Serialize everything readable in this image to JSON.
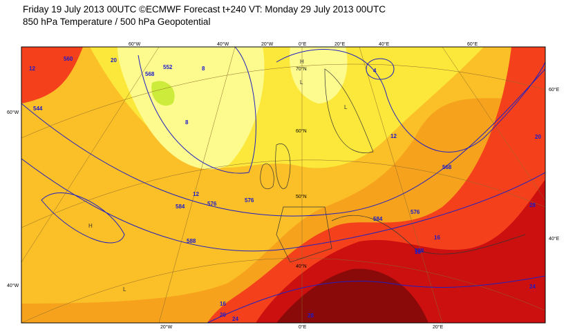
{
  "header": {
    "line1": "Friday 19 July 2013 00UTC ©ECMWF Forecast t+240 VT: Monday 29 July 2013 00UTC",
    "line2": "850 hPa Temperature / 500 hPa Geopotential"
  },
  "graticule_labels": [
    "60°W",
    "40°W",
    "20°W",
    "0°E",
    "20°E",
    "40°E",
    "60°E",
    "60°E",
    "40°E",
    "60°W",
    "40°W",
    "20°W",
    "0°E",
    "20°E",
    "70°N",
    "60°N",
    "50°N",
    "40°N"
  ],
  "temperature_labels": [
    "16",
    "20",
    "24",
    "28",
    "12",
    "20",
    "28",
    "24",
    "16",
    "12",
    "8",
    "8",
    "4",
    "12",
    "16",
    "20"
  ],
  "geopotential_labels": [
    "584",
    "576",
    "576",
    "568",
    "588",
    "588",
    "576",
    "584",
    "568",
    "552",
    "560",
    "544"
  ],
  "pressure_labels": [
    "H",
    "L",
    "H",
    "L",
    "L"
  ]
}
